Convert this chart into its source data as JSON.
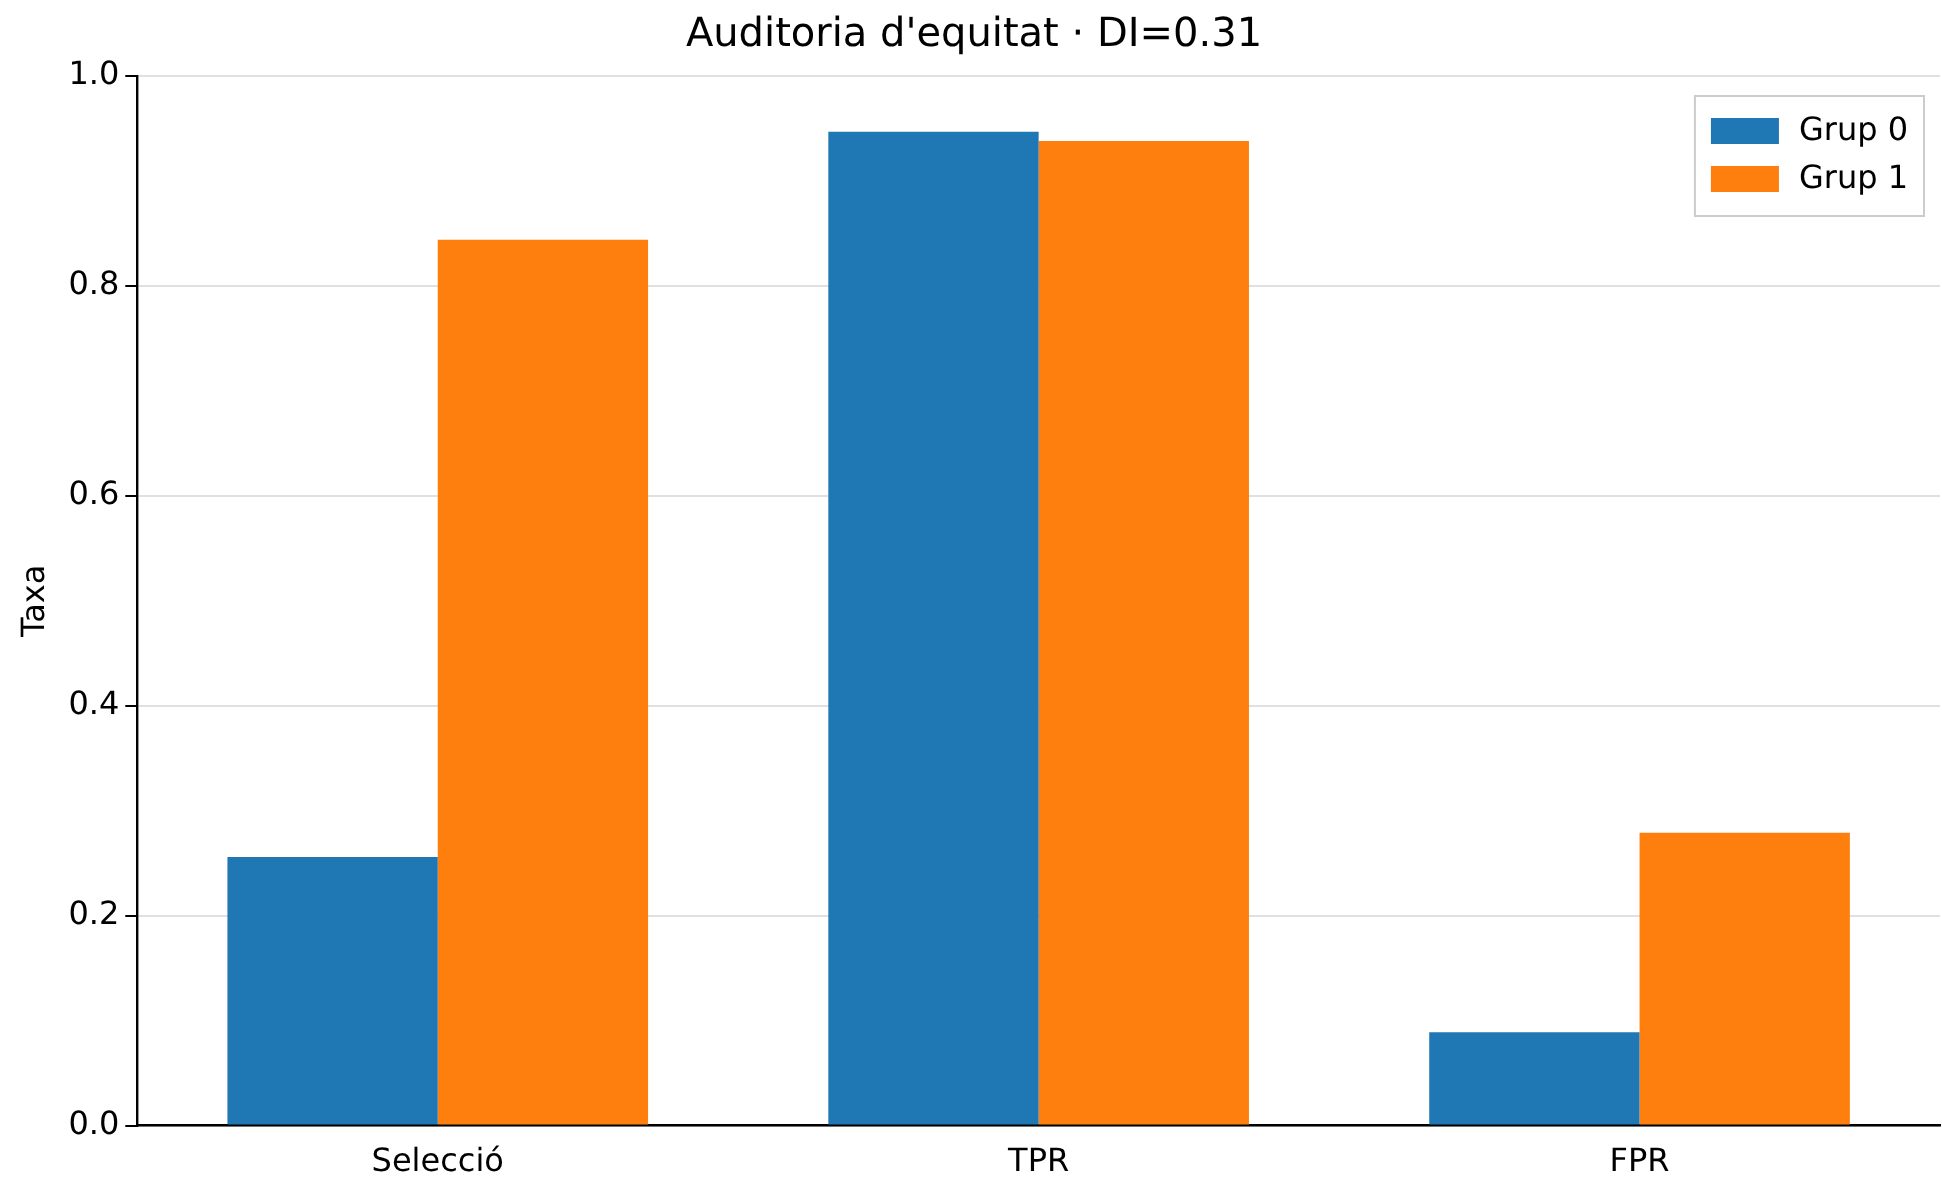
{
  "chart_data": {
    "type": "bar",
    "title": "Auditoria d'equitat · DI=0.31",
    "ylabel": "Taxa",
    "categories": [
      "Selecció",
      "TPR",
      "FPR"
    ],
    "series": [
      {
        "name": "Grup 0",
        "color": "#1f77b4",
        "values": [
          0.256,
          0.947,
          0.089
        ]
      },
      {
        "name": "Grup 1",
        "color": "#ff7f0e",
        "values": [
          0.844,
          0.938,
          0.279
        ]
      }
    ],
    "ylim": [
      0,
      1
    ],
    "yticks": [
      {
        "value": 0,
        "label": "0.0"
      },
      {
        "value": 0.2,
        "label": "0.2"
      },
      {
        "value": 0.4,
        "label": "0.4"
      },
      {
        "value": 0.6,
        "label": "0.6"
      },
      {
        "value": 0.8,
        "label": "0.8"
      },
      {
        "value": 1,
        "label": "1.0"
      }
    ],
    "grid": "y",
    "legend": "top right"
  }
}
